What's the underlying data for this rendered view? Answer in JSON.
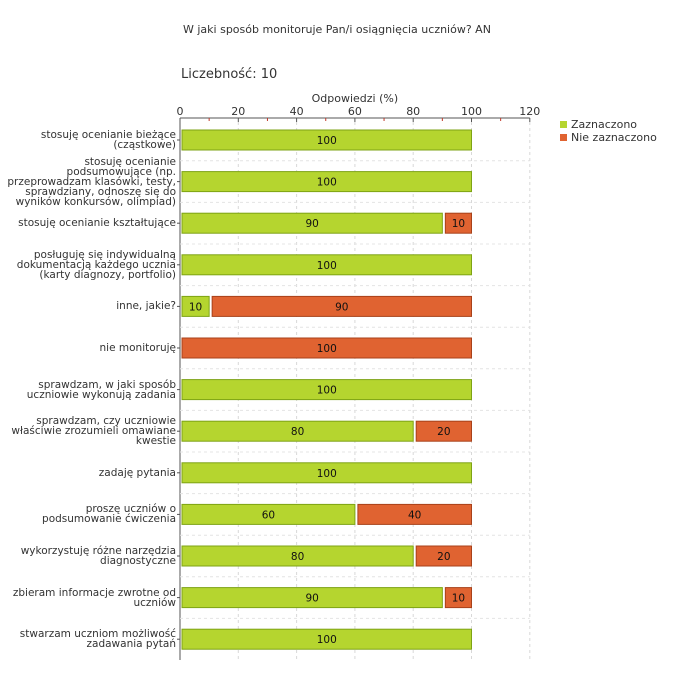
{
  "chart_data": {
    "type": "bar",
    "orientation": "horizontal",
    "stacked": true,
    "title": "W jaki sposób monitoruje Pan/i osiągnięcia uczniów?  AN",
    "count_label": "Liczebność:",
    "count_value": "10",
    "xlabel": "Odpowiedzi (%)",
    "xlim": [
      0,
      120
    ],
    "ticks": [
      0,
      20,
      40,
      60,
      80,
      100,
      120
    ],
    "grid": true,
    "legend_position": "top-right",
    "categories": [
      "stosuję ocenianie bieżące (cząstkowe)",
      "stosuję ocenianie podsumowujące (np. przeprowadzam klasówki, testy, sprawdziany, odnoszę się do wyników konkursów, olimpiad)",
      "stosuję ocenianie kształtujące",
      "posługuję się indywidualną dokumentacją każdego ucznia (karty diagnozy, portfolio)",
      "inne, jakie?",
      "nie monitoruję",
      "sprawdzam, w jaki sposób uczniowie wykonują zadania",
      "sprawdzam, czy uczniowie właściwie zrozumieli omawiane kwestie",
      "zadaję pytania",
      "proszę uczniów o podsumowanie ćwiczenia",
      "wykorzystuję różne narzędzia diagnostyczne",
      "zbieram informacje zwrotne od uczniów",
      "stwarzam uczniom możliwość zadawania pytań"
    ],
    "series": [
      {
        "name": "Zaznaczono",
        "color": "#b5d52f",
        "values": [
          100,
          100,
          90,
          100,
          10,
          0,
          100,
          80,
          100,
          60,
          80,
          90,
          100
        ]
      },
      {
        "name": "Nie zaznaczono",
        "color": "#e06331",
        "values": [
          0,
          0,
          10,
          0,
          90,
          100,
          0,
          20,
          0,
          40,
          20,
          10,
          0
        ]
      }
    ]
  }
}
